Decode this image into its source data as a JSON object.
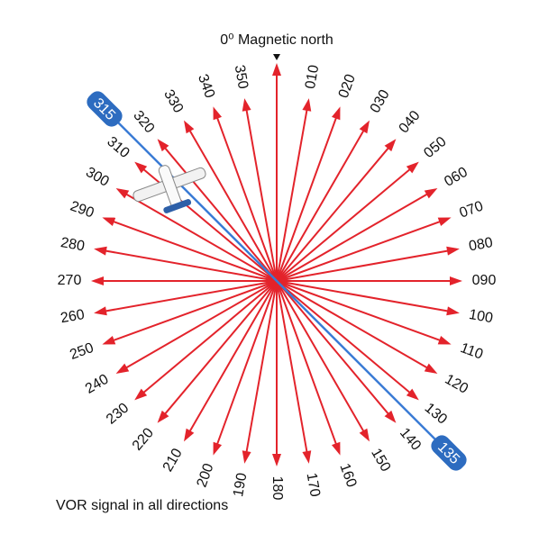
{
  "title": "0⁰ Magnetic north",
  "radials": [
    "010",
    "020",
    "030",
    "040",
    "050",
    "060",
    "070",
    "080",
    "090",
    "100",
    "110",
    "120",
    "130",
    "140",
    "150",
    "160",
    "170",
    "180",
    "190",
    "200",
    "210",
    "220",
    "230",
    "240",
    "250",
    "260",
    "270",
    "280",
    "290",
    "300",
    "310",
    "320",
    "330",
    "340",
    "350"
  ],
  "selected_radial": {
    "from": "315",
    "to": "135"
  },
  "caption": "VOR signal in all directions"
}
